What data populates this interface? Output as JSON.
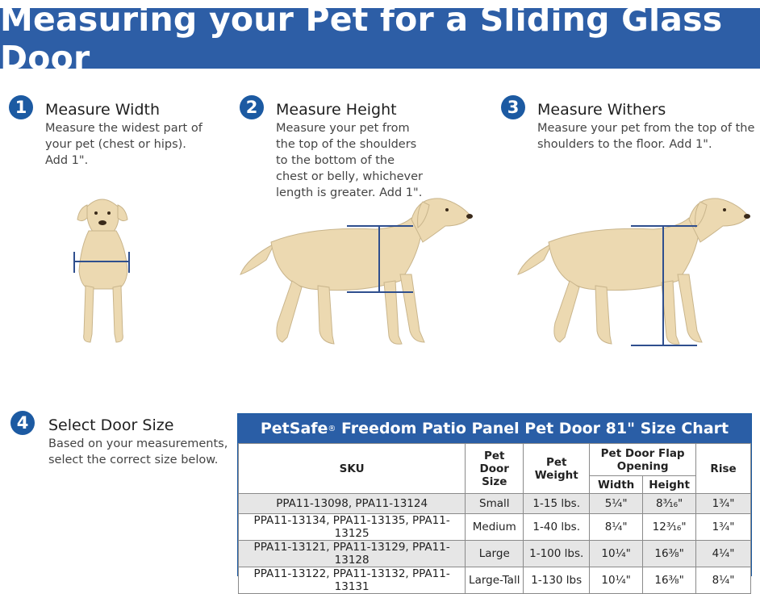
{
  "banner": {
    "title": "Measuring your Pet for a Sliding Glass Door"
  },
  "steps": [
    {
      "number": "1",
      "title": "Measure Width",
      "body": "Measure the widest part of your pet (chest or hips). Add 1\"."
    },
    {
      "number": "2",
      "title": "Measure Height",
      "body": "Measure your pet from the top of the shoulders to the bottom of the chest or belly, whichever length is greater. Add 1\"."
    },
    {
      "number": "3",
      "title": "Measure Withers",
      "body": "Measure your pet from the top of the shoulders to the floor. Add 1\"."
    },
    {
      "number": "4",
      "title": "Select Door Size",
      "body": "Based on your measurements, select the correct size below."
    }
  ],
  "size_chart": {
    "title_brand": "PetSafe",
    "title_mark": "®",
    "title_rest": " Freedom Patio Panel Pet Door 81\" Size Chart",
    "headers": {
      "sku": "SKU",
      "door_size": "Pet Door Size",
      "weight": "Pet Weight",
      "flap_opening": "Pet Door Flap Opening",
      "width": "Width",
      "height": "Height",
      "rise": "Rise"
    },
    "rows": [
      {
        "sku": "PPA11-13098, PPA11-13124",
        "size": "Small",
        "weight": "1-15 lbs.",
        "width": "5¼\"",
        "height": "8³⁄₁₆\"",
        "rise": "1¾\""
      },
      {
        "sku": "PPA11-13134, PPA11-13135, PPA11-13125",
        "size": "Medium",
        "weight": "1-40 lbs.",
        "width": "8¼\"",
        "height": "12³⁄₁₆\"",
        "rise": "1¾\""
      },
      {
        "sku": "PPA11-13121, PPA11-13129, PPA11-13128",
        "size": "Large",
        "weight": "1-100 lbs.",
        "width": "10¼\"",
        "height": "16⅜\"",
        "rise": "4¼\""
      },
      {
        "sku": "PPA11-13122, PPA11-13132, PPA11-13131",
        "size": "Large-Tall",
        "weight": "1-130 lbs",
        "width": "10¼\"",
        "height": "16⅜\"",
        "rise": "8¼\""
      }
    ]
  },
  "colors": {
    "brand_blue": "#2d5ea6",
    "dog_fur": "#ecd9b1",
    "measure_line": "#2f4f8e"
  },
  "illustrations": [
    "dog-front-width-measure",
    "dog-side-height-measure",
    "dog-side-withers-measure"
  ]
}
